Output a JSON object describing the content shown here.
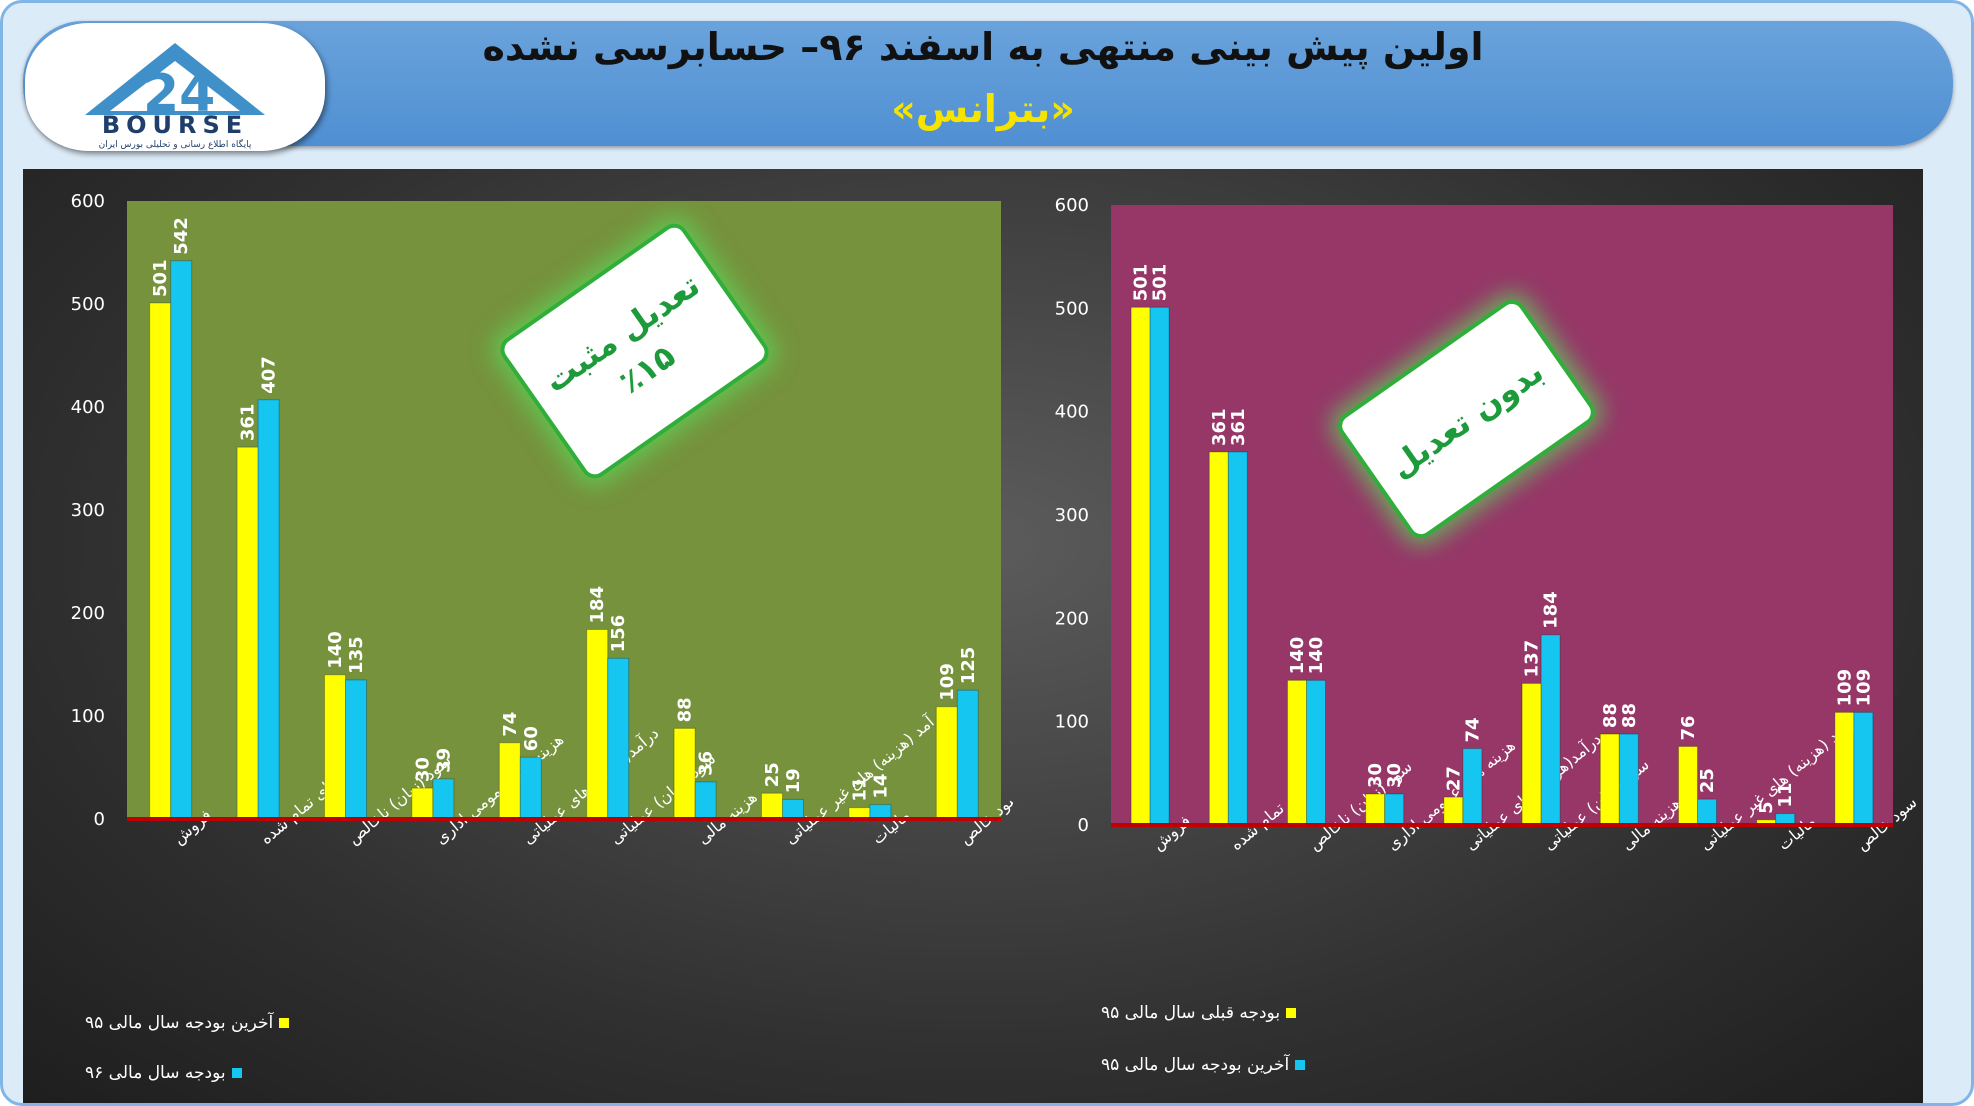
{
  "header": {
    "title": "اولین پیش بینی منتهی به اسفند ۹۶– حسابرسی نشده",
    "subtitle": "«بترانس»",
    "logo_text": "BOURSE",
    "logo_tagline": "پایگاه اطلاع رسانی و تحلیلی بورس ایران"
  },
  "colors": {
    "yellow": "#ffff00",
    "cyan": "#15c6f0",
    "left_plot_bg": "#76923c",
    "right_plot_bg": "#963768",
    "axis_line": "#c00000"
  },
  "charts": {
    "left": {
      "badge_line1": "تعدیل مثبت",
      "badge_line2": "٪۱۵",
      "legend": [
        "آخرین بودجه سال مالی ۹۵",
        "بودجه سال مالی ۹۶"
      ]
    },
    "right": {
      "badge_line1": "بدون تعدیل",
      "legend": [
        "بودجه قبلی سال مالی ۹۵",
        "آخرین بودجه سال مالی ۹۵"
      ]
    }
  },
  "chart_data": [
    {
      "type": "bar",
      "categories": [
        "فروش",
        "بهای تمام شده",
        "سود (زیان) ناخالص",
        "هزینه های عمومی اداری",
        "درآمد(هزینه) های عملیاتی",
        "سود (زیان) عملیاتی",
        "هزینه مالی",
        "درآمد (هزینه) های غیر عملیاتی",
        "مالیات",
        "سود خالص"
      ],
      "series": [
        {
          "name": "آخرین بودجه سال مالی ۹۵",
          "color": "#ffff00",
          "values": [
            501,
            361,
            140,
            30,
            74,
            184,
            88,
            25,
            11,
            109
          ]
        },
        {
          "name": "بودجه سال مالی ۹۶",
          "color": "#15c6f0",
          "values": [
            542,
            407,
            135,
            39,
            60,
            156,
            36,
            19,
            14,
            125
          ]
        }
      ],
      "ylim": [
        0,
        600
      ],
      "yticks": [
        0,
        100,
        200,
        300,
        400,
        500,
        600
      ],
      "grid": false,
      "legend_position": "bottom-left"
    },
    {
      "type": "bar",
      "categories": [
        "فروش",
        "بهای تمام شده",
        "سود (زیان) ناخالص",
        "هزینه های عمومی اداری",
        "درآمد(هزینه) های عملیاتی",
        "سود (زیان) عملیاتی",
        "هزینه مالی",
        "درآمد (هزینه) های غیر عملیاتی",
        "مالیات",
        "سود خالص"
      ],
      "series": [
        {
          "name": "بودجه قبلی سال مالی ۹۵",
          "color": "#ffff00",
          "values": [
            501,
            361,
            140,
            30,
            27,
            137,
            88,
            76,
            5,
            109
          ]
        },
        {
          "name": "آخرین بودجه سال مالی ۹۵",
          "color": "#15c6f0",
          "values": [
            501,
            361,
            140,
            30,
            74,
            184,
            88,
            25,
            11,
            109
          ]
        }
      ],
      "ylim": [
        0,
        600
      ],
      "yticks": [
        0,
        100,
        200,
        300,
        400,
        500,
        600
      ],
      "grid": false,
      "legend_position": "bottom-left"
    }
  ]
}
